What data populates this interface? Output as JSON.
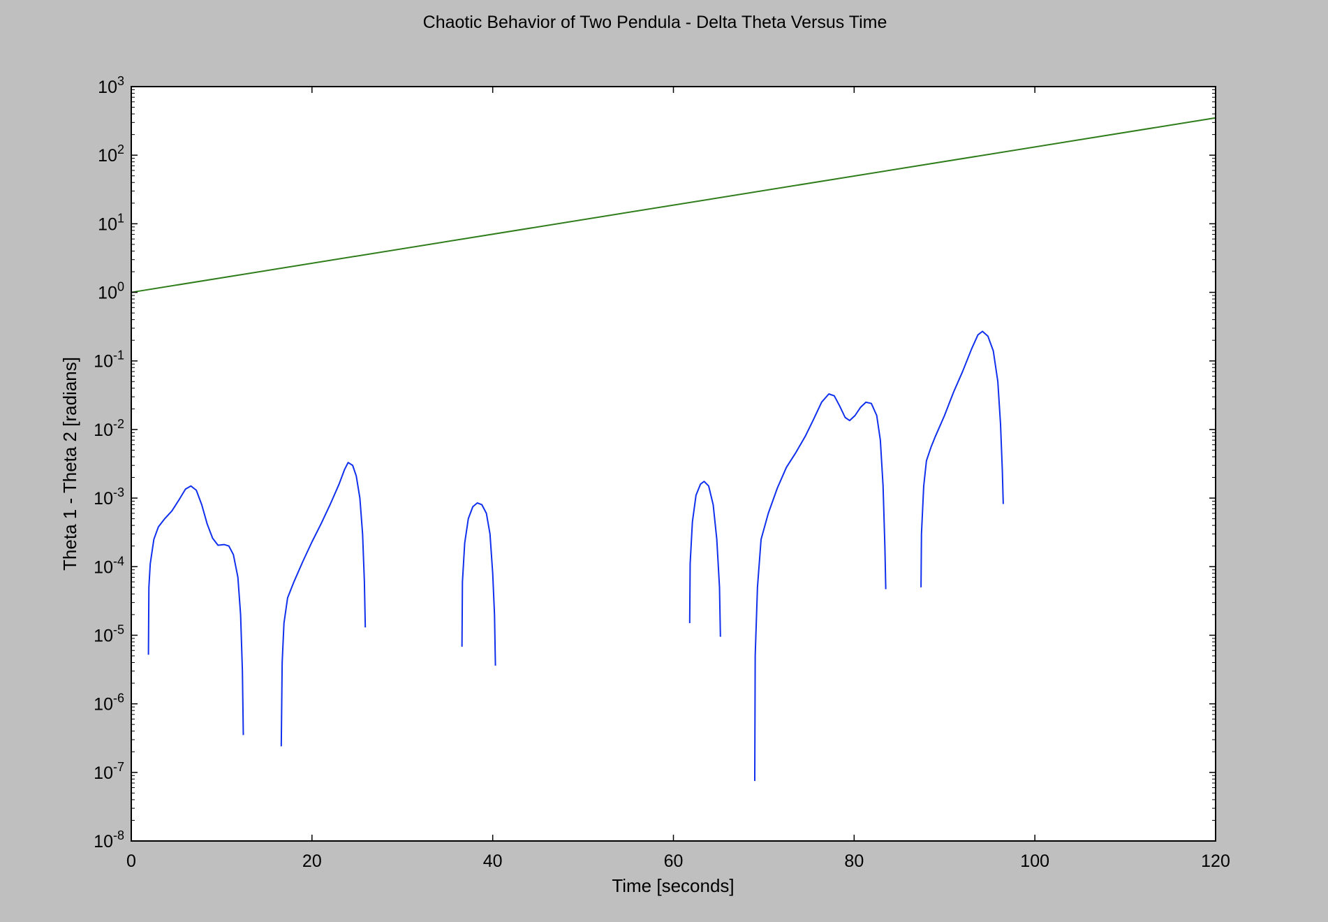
{
  "chart_data": {
    "type": "line",
    "title": "Chaotic Behavior of Two Pendula - Delta Theta Versus Time",
    "xlabel": "Time [seconds]",
    "ylabel": "Theta 1 - Theta 2 [radians]",
    "xlim": [
      0,
      120
    ],
    "ylim": [
      1e-08,
      1000
    ],
    "yscale": "log",
    "grid": false,
    "x_ticks": [
      {
        "value": 0,
        "label": "0"
      },
      {
        "value": 20,
        "label": "20"
      },
      {
        "value": 40,
        "label": "40"
      },
      {
        "value": 60,
        "label": "60"
      },
      {
        "value": 80,
        "label": "80"
      },
      {
        "value": 100,
        "label": "100"
      },
      {
        "value": 120,
        "label": "120"
      }
    ],
    "y_ticks": [
      {
        "exponent": 3,
        "base": "10",
        "power": "3"
      },
      {
        "exponent": 2,
        "base": "10",
        "power": "2"
      },
      {
        "exponent": 1,
        "base": "10",
        "power": "1"
      },
      {
        "exponent": 0,
        "base": "10",
        "power": "0"
      },
      {
        "exponent": -1,
        "base": "10",
        "power": "-1"
      },
      {
        "exponent": -2,
        "base": "10",
        "power": "-2"
      },
      {
        "exponent": -3,
        "base": "10",
        "power": "-3"
      },
      {
        "exponent": -4,
        "base": "10",
        "power": "-4"
      },
      {
        "exponent": -5,
        "base": "10",
        "power": "-5"
      },
      {
        "exponent": -6,
        "base": "10",
        "power": "-6"
      },
      {
        "exponent": -7,
        "base": "10",
        "power": "-7"
      },
      {
        "exponent": -8,
        "base": "10",
        "power": "-8"
      }
    ],
    "series": [
      {
        "color": "#2e7d1a",
        "style": "line",
        "points": [
          [
            0,
            1.0
          ],
          [
            120,
            350
          ]
        ]
      },
      {
        "color": "#1030ee",
        "style": "line",
        "segments": [
          [
            [
              1.9,
              5.2e-06
            ],
            [
              1.95,
              5e-05
            ],
            [
              2.1,
              0.00011
            ],
            [
              2.5,
              0.00025
            ],
            [
              3.0,
              0.00038
            ],
            [
              3.7,
              0.0005
            ],
            [
              4.5,
              0.00065
            ],
            [
              5.3,
              0.00095
            ],
            [
              6.0,
              0.00135
            ],
            [
              6.6,
              0.0015
            ],
            [
              7.2,
              0.0013
            ],
            [
              7.8,
              0.0008
            ],
            [
              8.4,
              0.00042
            ],
            [
              9.0,
              0.00026
            ],
            [
              9.6,
              0.000205
            ],
            [
              10.3,
              0.00021
            ],
            [
              10.8,
              0.0002
            ],
            [
              11.3,
              0.00015
            ],
            [
              11.8,
              7e-05
            ],
            [
              12.1,
              2e-05
            ],
            [
              12.3,
              3e-06
            ],
            [
              12.4,
              3.5e-07
            ]
          ],
          [
            [
              16.6,
              2.4e-07
            ],
            [
              16.7,
              4e-06
            ],
            [
              16.9,
              1.5e-05
            ],
            [
              17.3,
              3.5e-05
            ],
            [
              18.0,
              6e-05
            ],
            [
              19.0,
              0.00012
            ],
            [
              20.0,
              0.00023
            ],
            [
              21.0,
              0.00042
            ],
            [
              22.0,
              0.0008
            ],
            [
              23.0,
              0.0016
            ],
            [
              23.6,
              0.0026
            ],
            [
              24.0,
              0.0033
            ],
            [
              24.5,
              0.003
            ],
            [
              24.9,
              0.0021
            ],
            [
              25.3,
              0.001
            ],
            [
              25.6,
              0.0003
            ],
            [
              25.8,
              6e-05
            ],
            [
              25.9,
              1.3e-05
            ]
          ],
          [
            [
              36.6,
              6.8e-06
            ],
            [
              36.65,
              6e-05
            ],
            [
              36.9,
              0.00022
            ],
            [
              37.3,
              0.0005
            ],
            [
              37.8,
              0.00075
            ],
            [
              38.3,
              0.00085
            ],
            [
              38.8,
              0.0008
            ],
            [
              39.3,
              0.0006
            ],
            [
              39.7,
              0.0003
            ],
            [
              40.0,
              8e-05
            ],
            [
              40.2,
              2e-05
            ],
            [
              40.3,
              3.6e-06
            ]
          ],
          [
            [
              61.8,
              1.5e-05
            ],
            [
              61.85,
              0.00011
            ],
            [
              62.1,
              0.00045
            ],
            [
              62.5,
              0.0011
            ],
            [
              63.0,
              0.0016
            ],
            [
              63.4,
              0.00175
            ],
            [
              63.9,
              0.0015
            ],
            [
              64.4,
              0.0008
            ],
            [
              64.8,
              0.00025
            ],
            [
              65.1,
              5e-05
            ],
            [
              65.2,
              9.5e-06
            ]
          ],
          [
            [
              69.0,
              7.5e-08
            ],
            [
              69.05,
              5e-06
            ],
            [
              69.3,
              5e-05
            ],
            [
              69.7,
              0.00025
            ],
            [
              70.5,
              0.0006
            ],
            [
              71.5,
              0.0014
            ],
            [
              72.5,
              0.0028
            ],
            [
              73.5,
              0.0045
            ],
            [
              74.6,
              0.008
            ],
            [
              75.5,
              0.014
            ],
            [
              76.4,
              0.025
            ],
            [
              77.2,
              0.033
            ],
            [
              77.8,
              0.031
            ],
            [
              78.4,
              0.022
            ],
            [
              79.0,
              0.015
            ],
            [
              79.5,
              0.0135
            ],
            [
              80.1,
              0.016
            ],
            [
              80.7,
              0.021
            ],
            [
              81.3,
              0.025
            ],
            [
              81.9,
              0.024
            ],
            [
              82.5,
              0.016
            ],
            [
              82.9,
              0.007
            ],
            [
              83.2,
              0.0015
            ],
            [
              83.4,
              0.0002
            ],
            [
              83.5,
              4.7e-05
            ]
          ],
          [
            [
              87.4,
              5e-05
            ],
            [
              87.45,
              0.0003
            ],
            [
              87.7,
              0.0015
            ],
            [
              88.0,
              0.0035
            ],
            [
              88.5,
              0.0055
            ],
            [
              89.0,
              0.008
            ],
            [
              90.0,
              0.016
            ],
            [
              91.0,
              0.035
            ],
            [
              92.0,
              0.07
            ],
            [
              93.0,
              0.15
            ],
            [
              93.7,
              0.24
            ],
            [
              94.2,
              0.27
            ],
            [
              94.8,
              0.23
            ],
            [
              95.4,
              0.14
            ],
            [
              95.9,
              0.05
            ],
            [
              96.2,
              0.012
            ],
            [
              96.4,
              0.0025
            ],
            [
              96.5,
              0.00082
            ]
          ]
        ]
      }
    ]
  }
}
